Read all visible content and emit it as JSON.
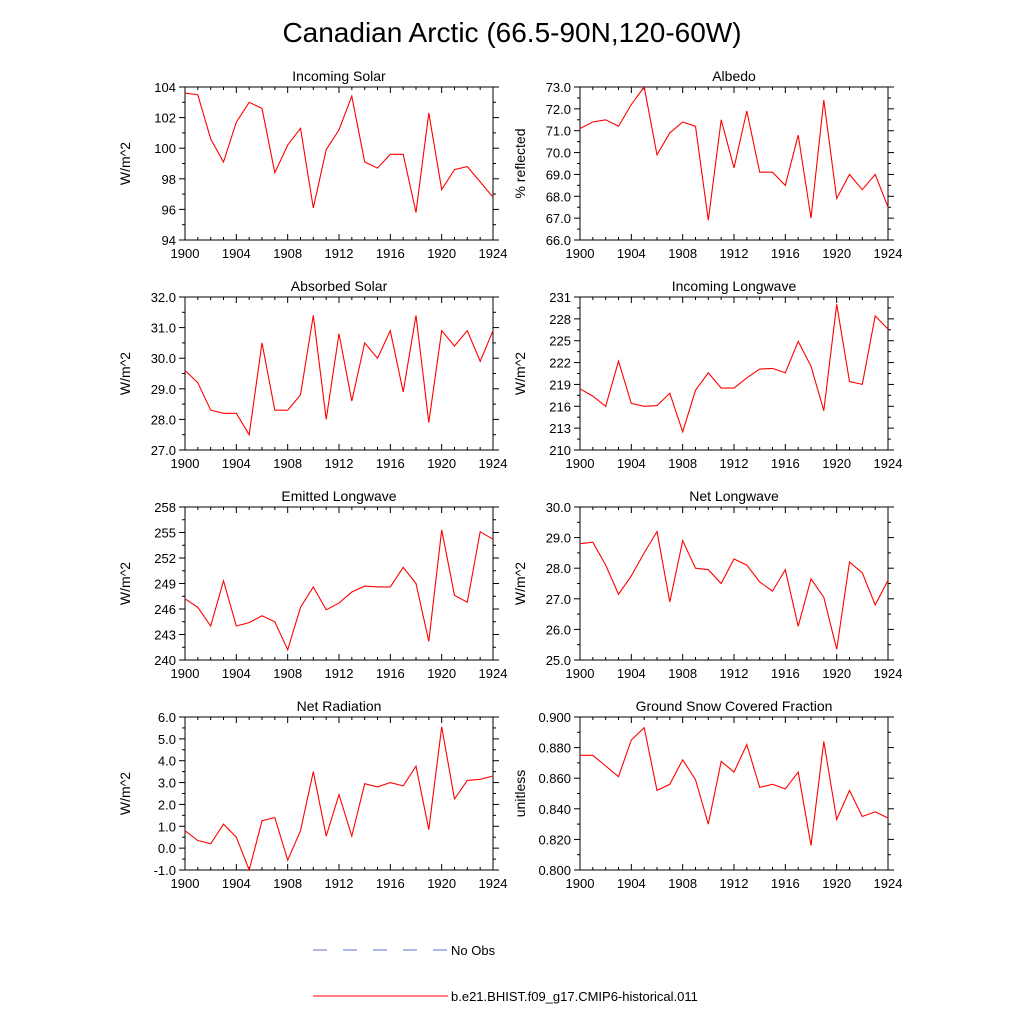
{
  "figure": {
    "title": "Canadian Arctic (66.5-90N,120-60W)",
    "legend": [
      {
        "label": "No Obs",
        "color": "#5a6fd0",
        "style": "dashed"
      },
      {
        "label": "b.e21.BHIST.f09_g17.CMIP6-historical.011",
        "color": "#ff0000",
        "style": "solid"
      }
    ]
  },
  "chart_data": [
    {
      "type": "line",
      "title": "Incoming Solar",
      "xlabel": "",
      "ylabel": "W/m^2",
      "xlim": [
        1900,
        1924
      ],
      "ylim": [
        94,
        104
      ],
      "xticks": [
        1900,
        1904,
        1908,
        1912,
        1916,
        1920,
        1924
      ],
      "yticks": [
        "94",
        "96",
        "98",
        "100",
        "102",
        "104"
      ],
      "ytick_values": [
        94,
        96,
        98,
        100,
        102,
        104
      ],
      "series": [
        {
          "color": "#ff0000",
          "x": [
            1900,
            1901,
            1902,
            1903,
            1904,
            1905,
            1906,
            1907,
            1908,
            1909,
            1910,
            1911,
            1912,
            1913,
            1914,
            1915,
            1916,
            1917,
            1918,
            1919,
            1920,
            1921,
            1922,
            1923,
            1924
          ],
          "y": [
            103.6,
            103.5,
            100.6,
            99.1,
            101.7,
            103.0,
            102.6,
            98.4,
            100.2,
            101.3,
            96.1,
            99.9,
            101.2,
            103.4,
            99.1,
            98.7,
            99.6,
            99.6,
            95.8,
            102.3,
            97.3,
            98.6,
            98.8,
            97.8,
            96.8
          ]
        }
      ]
    },
    {
      "type": "line",
      "title": "Albedo",
      "xlabel": "",
      "ylabel": "% reflected",
      "xlim": [
        1900,
        1924
      ],
      "ylim": [
        66,
        73
      ],
      "xticks": [
        1900,
        1904,
        1908,
        1912,
        1916,
        1920,
        1924
      ],
      "yticks": [
        "66.0",
        "67.0",
        "68.0",
        "69.0",
        "70.0",
        "71.0",
        "72.0",
        "73.0"
      ],
      "ytick_values": [
        66,
        67,
        68,
        69,
        70,
        71,
        72,
        73
      ],
      "series": [
        {
          "color": "#ff0000",
          "x": [
            1900,
            1901,
            1902,
            1903,
            1904,
            1905,
            1906,
            1907,
            1908,
            1909,
            1910,
            1911,
            1912,
            1913,
            1914,
            1915,
            1916,
            1917,
            1918,
            1919,
            1920,
            1921,
            1922,
            1923,
            1924
          ],
          "y": [
            71.1,
            71.4,
            71.5,
            71.2,
            72.2,
            73.0,
            69.9,
            70.9,
            71.4,
            71.2,
            66.9,
            71.5,
            69.3,
            71.9,
            69.1,
            69.1,
            68.5,
            70.8,
            67.0,
            72.4,
            67.9,
            69.0,
            68.3,
            69.0,
            67.5
          ]
        }
      ]
    },
    {
      "type": "line",
      "title": "Absorbed Solar",
      "xlabel": "",
      "ylabel": "W/m^2",
      "xlim": [
        1900,
        1924
      ],
      "ylim": [
        27,
        32
      ],
      "xticks": [
        1900,
        1904,
        1908,
        1912,
        1916,
        1920,
        1924
      ],
      "yticks": [
        "27.0",
        "28.0",
        "29.0",
        "30.0",
        "31.0",
        "32.0"
      ],
      "ytick_values": [
        27,
        28,
        29,
        30,
        31,
        32
      ],
      "series": [
        {
          "color": "#ff0000",
          "x": [
            1900,
            1901,
            1902,
            1903,
            1904,
            1905,
            1906,
            1907,
            1908,
            1909,
            1910,
            1911,
            1912,
            1913,
            1914,
            1915,
            1916,
            1917,
            1918,
            1919,
            1920,
            1921,
            1922,
            1923,
            1924
          ],
          "y": [
            29.6,
            29.2,
            28.3,
            28.2,
            28.2,
            27.5,
            30.5,
            28.3,
            28.3,
            28.8,
            31.4,
            28.0,
            30.8,
            28.6,
            30.5,
            30.0,
            30.9,
            28.9,
            31.4,
            27.9,
            30.9,
            30.4,
            30.9,
            29.9,
            30.9
          ]
        }
      ]
    },
    {
      "type": "line",
      "title": "Incoming Longwave",
      "xlabel": "",
      "ylabel": "W/m^2",
      "xlim": [
        1900,
        1924
      ],
      "ylim": [
        210,
        231
      ],
      "xticks": [
        1900,
        1904,
        1908,
        1912,
        1916,
        1920,
        1924
      ],
      "yticks": [
        "210",
        "213",
        "216",
        "219",
        "222",
        "225",
        "228",
        "231"
      ],
      "ytick_values": [
        210,
        213,
        216,
        219,
        222,
        225,
        228,
        231
      ],
      "series": [
        {
          "color": "#ff0000",
          "x": [
            1900,
            1901,
            1902,
            1903,
            1904,
            1905,
            1906,
            1907,
            1908,
            1909,
            1910,
            1911,
            1912,
            1913,
            1914,
            1915,
            1916,
            1917,
            1918,
            1919,
            1920,
            1921,
            1922,
            1923,
            1924
          ],
          "y": [
            218.4,
            217.4,
            216.0,
            222.2,
            216.4,
            216.0,
            216.1,
            217.8,
            212.5,
            218.2,
            220.6,
            218.5,
            218.5,
            219.9,
            221.1,
            221.2,
            220.6,
            224.9,
            221.5,
            215.4,
            230.0,
            219.4,
            219.0,
            228.4,
            226.6
          ]
        }
      ]
    },
    {
      "type": "line",
      "title": "Emitted Longwave",
      "xlabel": "",
      "ylabel": "W/m^2",
      "xlim": [
        1900,
        1924
      ],
      "ylim": [
        240,
        258
      ],
      "xticks": [
        1900,
        1904,
        1908,
        1912,
        1916,
        1920,
        1924
      ],
      "yticks": [
        "240",
        "243",
        "246",
        "249",
        "252",
        "255",
        "258"
      ],
      "ytick_values": [
        240,
        243,
        246,
        249,
        252,
        255,
        258
      ],
      "series": [
        {
          "color": "#ff0000",
          "x": [
            1900,
            1901,
            1902,
            1903,
            1904,
            1905,
            1906,
            1907,
            1908,
            1909,
            1910,
            1911,
            1912,
            1913,
            1914,
            1915,
            1916,
            1917,
            1918,
            1919,
            1920,
            1921,
            1922,
            1923,
            1924
          ],
          "y": [
            247.2,
            246.2,
            244.0,
            249.3,
            244.0,
            244.4,
            245.2,
            244.5,
            241.2,
            246.2,
            248.6,
            245.9,
            246.7,
            248.0,
            248.7,
            248.6,
            248.6,
            250.9,
            249.0,
            242.2,
            255.3,
            247.6,
            246.8,
            255.1,
            254.2
          ]
        }
      ]
    },
    {
      "type": "line",
      "title": "Net Longwave",
      "xlabel": "",
      "ylabel": "W/m^2",
      "xlim": [
        1900,
        1924
      ],
      "ylim": [
        25,
        30
      ],
      "xticks": [
        1900,
        1904,
        1908,
        1912,
        1916,
        1920,
        1924
      ],
      "yticks": [
        "25.0",
        "26.0",
        "27.0",
        "28.0",
        "29.0",
        "30.0"
      ],
      "ytick_values": [
        25,
        26,
        27,
        28,
        29,
        30
      ],
      "series": [
        {
          "color": "#ff0000",
          "x": [
            1900,
            1901,
            1902,
            1903,
            1904,
            1905,
            1906,
            1907,
            1908,
            1909,
            1910,
            1911,
            1912,
            1913,
            1914,
            1915,
            1916,
            1917,
            1918,
            1919,
            1920,
            1921,
            1922,
            1923,
            1924
          ],
          "y": [
            28.8,
            28.85,
            28.1,
            27.15,
            27.75,
            28.5,
            29.2,
            26.9,
            28.9,
            28.0,
            27.95,
            27.5,
            28.3,
            28.1,
            27.55,
            27.25,
            27.95,
            26.1,
            27.65,
            27.05,
            25.35,
            28.2,
            27.85,
            26.8,
            27.6
          ]
        }
      ]
    },
    {
      "type": "line",
      "title": "Net Radiation",
      "xlabel": "",
      "ylabel": "W/m^2",
      "xlim": [
        1900,
        1924
      ],
      "ylim": [
        -1,
        6
      ],
      "xticks": [
        1900,
        1904,
        1908,
        1912,
        1916,
        1920,
        1924
      ],
      "yticks": [
        "-1.0",
        "0.0",
        "1.0",
        "2.0",
        "3.0",
        "4.0",
        "5.0",
        "6.0"
      ],
      "ytick_values": [
        -1,
        0,
        1,
        2,
        3,
        4,
        5,
        6
      ],
      "series": [
        {
          "color": "#ff0000",
          "x": [
            1900,
            1901,
            1902,
            1903,
            1904,
            1905,
            1906,
            1907,
            1908,
            1909,
            1910,
            1911,
            1912,
            1913,
            1914,
            1915,
            1916,
            1917,
            1918,
            1919,
            1920,
            1921,
            1922,
            1923,
            1924
          ],
          "y": [
            0.8,
            0.35,
            0.2,
            1.1,
            0.5,
            -1.0,
            1.25,
            1.4,
            -0.55,
            0.8,
            3.5,
            0.55,
            2.45,
            0.55,
            2.95,
            2.8,
            3.0,
            2.85,
            3.75,
            0.85,
            5.55,
            2.25,
            3.1,
            3.15,
            3.3
          ]
        }
      ]
    },
    {
      "type": "line",
      "title": "Ground Snow Covered Fraction",
      "xlabel": "",
      "ylabel": "unitless",
      "xlim": [
        1900,
        1924
      ],
      "ylim": [
        0.8,
        0.9
      ],
      "xticks": [
        1900,
        1904,
        1908,
        1912,
        1916,
        1920,
        1924
      ],
      "yticks": [
        "0.800",
        "0.820",
        "0.840",
        "0.860",
        "0.880",
        "0.900"
      ],
      "ytick_values": [
        0.8,
        0.82,
        0.84,
        0.86,
        0.88,
        0.9
      ],
      "series": [
        {
          "color": "#ff0000",
          "x": [
            1900,
            1901,
            1902,
            1903,
            1904,
            1905,
            1906,
            1907,
            1908,
            1909,
            1910,
            1911,
            1912,
            1913,
            1914,
            1915,
            1916,
            1917,
            1918,
            1919,
            1920,
            1921,
            1922,
            1923,
            1924
          ],
          "y": [
            0.875,
            0.875,
            0.868,
            0.861,
            0.885,
            0.893,
            0.852,
            0.856,
            0.872,
            0.859,
            0.83,
            0.871,
            0.864,
            0.882,
            0.854,
            0.856,
            0.853,
            0.864,
            0.816,
            0.884,
            0.833,
            0.852,
            0.835,
            0.838,
            0.834
          ]
        }
      ]
    }
  ]
}
